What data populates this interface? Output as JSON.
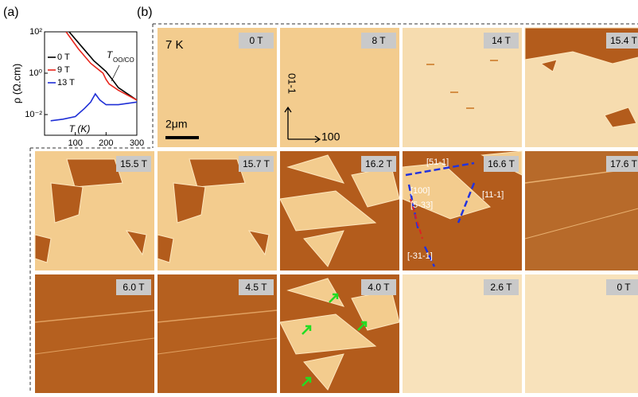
{
  "panel_labels": [
    "(a)",
    "(b)"
  ],
  "chart_data": {
    "type": "line",
    "y_label": "ρ (Ω.cm)",
    "x_label": "T (K)",
    "annotation": "T",
    "annotation_sub": "OO/CO",
    "log_y": true,
    "legend": "upper-left",
    "xlim": [
      0,
      300
    ],
    "xticks": [
      100,
      200,
      300
    ],
    "ylim": [
      0.001,
      100
    ],
    "yticks": [
      {
        "value": 100,
        "label": "10²"
      },
      {
        "value": 1,
        "label": "10⁰"
      },
      {
        "value": 0.01,
        "label": "10⁻²"
      }
    ],
    "series": [
      {
        "name": "0 T",
        "color": "#000000",
        "x": [
          80,
          120,
          160,
          200,
          220,
          240,
          300
        ],
        "values": [
          100,
          20,
          4,
          1.2,
          0.5,
          0.2,
          0.05
        ]
      },
      {
        "name": "9 T",
        "color": "#e8261c",
        "x": [
          70,
          110,
          150,
          190,
          200,
          210,
          240,
          300
        ],
        "values": [
          100,
          15,
          3,
          1,
          0.5,
          0.3,
          0.15,
          0.05
        ]
      },
      {
        "name": "13 T",
        "color": "#1f2fd6",
        "x": [
          20,
          60,
          100,
          130,
          150,
          165,
          180,
          200,
          240,
          300
        ],
        "values": [
          0.005,
          0.006,
          0.008,
          0.02,
          0.04,
          0.1,
          0.05,
          0.03,
          0.03,
          0.04
        ]
      }
    ]
  },
  "panel_b": {
    "temperature": "7 K",
    "scale_bar": "2μm",
    "axis_labels": [
      "01-1",
      "100"
    ],
    "directions": [
      "[51-1]",
      "[100]",
      "[5-33]",
      "[11-1]",
      "[-31-1]"
    ],
    "rows": [
      [
        "0 T",
        "8 T",
        "14 T",
        "15.4 T"
      ],
      [
        "15.5 T",
        "15.7 T",
        "16.2 T",
        "16.6 T",
        "17.6 T"
      ],
      [
        "6.0 T",
        "4.5 T",
        "4.0 T",
        "2.6 T",
        "0 T"
      ]
    ]
  }
}
